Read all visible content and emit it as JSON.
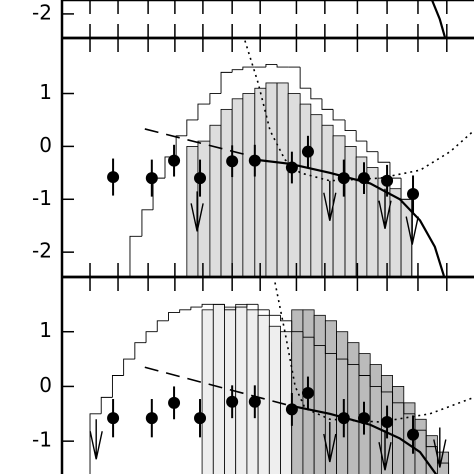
{
  "chart_data": [
    {
      "type": "scatter",
      "xlim": [
        0,
        100
      ],
      "ylim": [
        -2.45,
        -1.74
      ],
      "yticks": [
        -2
      ],
      "xticks": [
        6.8,
        13.6,
        20.9,
        27.4,
        34.2,
        41.3,
        48.1,
        56.9,
        63.8,
        71.7,
        78.9,
        86.4,
        93.4
      ],
      "curves": [
        {
          "x": [
            89.8,
            91.7,
            93.0
          ],
          "y": [
            -1.74,
            -2.1,
            -2.45
          ],
          "dash": "solid",
          "color": "#000000"
        }
      ]
    },
    {
      "type": "scatter",
      "xlim": [
        0,
        100
      ],
      "ylim": [
        -2.47,
        2.05
      ],
      "yticks": [
        -2,
        -1,
        0,
        1
      ],
      "xticks": [
        6.8,
        13.6,
        20.9,
        27.4,
        34.2,
        41.3,
        48.1,
        56.9,
        63.8,
        71.7,
        78.9,
        86.4,
        93.4
      ],
      "histograms": [
        {
          "bins": [
            30.3,
            33.0,
            35.9,
            38.6,
            41.3,
            43.9,
            46.8,
            49.5,
            52.2,
            54.9,
            57.8,
            60.4,
            63.1,
            65.8,
            68.7,
            71.4,
            74.0,
            76.7,
            79.6,
            82.3,
            84.9
          ],
          "values": [
            0.0,
            0.1,
            0.4,
            0.7,
            0.9,
            1.0,
            1.1,
            1.2,
            1.2,
            1.0,
            0.8,
            0.6,
            0.4,
            0.2,
            0.0,
            -0.2,
            -0.4,
            -0.6,
            -0.8,
            -1.0
          ],
          "fill": "#dddddd"
        },
        {
          "bins": [
            16.5,
            19.4,
            22.1,
            25.0,
            27.7,
            30.3,
            33.0,
            35.9,
            38.6,
            41.3,
            43.9,
            46.8,
            49.5,
            52.2,
            54.9,
            57.8,
            60.4,
            63.1,
            65.8,
            68.7,
            71.4,
            74.0,
            76.7,
            79.6,
            82.3,
            84.9
          ],
          "values": [
            -1.7,
            -1.2,
            -0.6,
            -0.2,
            0.2,
            0.5,
            0.8,
            1.0,
            1.4,
            1.45,
            1.5,
            1.5,
            1.55,
            1.5,
            1.5,
            1.1,
            0.9,
            0.7,
            0.5,
            0.3,
            0.1,
            -0.1,
            -0.3,
            -0.6,
            -1.0
          ],
          "fill": "none"
        }
      ],
      "curves": [
        {
          "x": [
            20.1,
            46.8
          ],
          "y": [
            0.33,
            -0.2
          ],
          "dash": "dashed",
          "color": "#000000"
        },
        {
          "x": [
            44.4,
            47.6,
            50.5,
            54.1,
            57.8,
            65.0,
            77.2,
            86.9,
            94.2,
            100
          ],
          "y": [
            2.0,
            1.2,
            0.3,
            -0.25,
            -0.5,
            -0.65,
            -0.6,
            -0.45,
            -0.1,
            0.3
          ],
          "dash": "dotted",
          "color": "#000000"
        },
        {
          "x": [
            46.8,
            55.3,
            65.0,
            74.8,
            82.0,
            86.9,
            90.5,
            92.7
          ],
          "y": [
            -0.25,
            -0.33,
            -0.5,
            -0.7,
            -1.0,
            -1.4,
            -1.9,
            -2.45
          ],
          "dash": "solid",
          "color": "#000000"
        }
      ],
      "upper_limits": {
        "x": [
          32.8,
          65.0,
          78.4,
          85.0
        ],
        "y": [
          -0.85,
          -0.65,
          -0.8,
          -1.1
        ]
      },
      "points": {
        "x": [
          12.4,
          21.8,
          27.2,
          33.5,
          41.3,
          46.8,
          55.8,
          59.7,
          68.4,
          73.3,
          78.9,
          85.2
        ],
        "y": [
          -0.58,
          -0.6,
          -0.27,
          -0.6,
          -0.28,
          -0.27,
          -0.4,
          -0.1,
          -0.6,
          -0.6,
          -0.65,
          -0.9
        ],
        "yerr": [
          0.35,
          0.35,
          0.3,
          0.35,
          0.3,
          0.3,
          0.3,
          0.3,
          0.35,
          0.3,
          0.3,
          0.35
        ],
        "color": "#000000"
      }
    },
    {
      "type": "scatter",
      "xlim": [
        0,
        100
      ],
      "ylim": [
        -1.71,
        2.0
      ],
      "yticks": [
        -1,
        0,
        1
      ],
      "xticks": [
        6.8,
        13.6,
        20.9,
        27.4,
        34.2,
        41.3,
        48.1,
        56.9,
        63.8,
        71.7,
        78.9,
        86.4,
        93.4
      ],
      "histograms": [
        {
          "bins": [
            34.0,
            36.72,
            39.44,
            42.16,
            44.88,
            47.6,
            50.32,
            53.04,
            55.76,
            58.48,
            61.2,
            63.92,
            66.64,
            69.36,
            72.08,
            74.8,
            77.52,
            80.24,
            82.96,
            85.68,
            88.4,
            91.12,
            93.84
          ],
          "values": [
            1.4,
            1.5,
            1.45,
            1.5,
            1.4,
            1.3,
            1.1,
            1.0,
            0.8,
            0.7,
            0.55,
            0.4,
            0.3,
            0.2,
            0.0,
            -0.2,
            -0.4,
            -0.6,
            -0.8,
            -1.0,
            -1.3,
            -1.6
          ],
          "fill": "#eeeeee"
        },
        {
          "bins": [
            55.76,
            58.48,
            61.2,
            63.92,
            66.64,
            69.36,
            72.08,
            74.8,
            77.52,
            80.24,
            82.96,
            85.68,
            88.4,
            91.12,
            93.84
          ],
          "values": [
            1.4,
            1.4,
            1.3,
            1.2,
            1.0,
            0.8,
            0.6,
            0.4,
            0.2,
            0.0,
            -0.3,
            -0.6,
            -0.9,
            -1.2
          ],
          "fill": "#bbbbbb"
        },
        {
          "bins": [
            6.8,
            9.52,
            12.24,
            14.96,
            17.68,
            20.4,
            23.12,
            25.84,
            28.56,
            31.28,
            34.0,
            36.72,
            39.44,
            42.16,
            44.88,
            47.6,
            50.32,
            53.04,
            55.76,
            58.48,
            61.2,
            63.92,
            66.64,
            69.36,
            72.08,
            74.8,
            77.52,
            80.24,
            82.96,
            85.68,
            88.4,
            91.12,
            93.84
          ],
          "values": [
            -0.5,
            -0.2,
            0.2,
            0.5,
            0.8,
            1.0,
            1.2,
            1.35,
            1.4,
            1.45,
            1.5,
            1.5,
            1.4,
            1.45,
            1.5,
            1.4,
            1.3,
            1.2,
            1.0,
            0.9,
            0.75,
            0.6,
            0.5,
            0.4,
            0.2,
            0.0,
            -0.1,
            -0.3,
            -0.5,
            -0.8,
            -1.1,
            -1.4
          ],
          "fill": "none"
        }
      ],
      "curves": [
        {
          "x": [
            20.1,
            55.3
          ],
          "y": [
            0.35,
            -0.35
          ],
          "dash": "dashed",
          "color": "#000000"
        },
        {
          "x": [
            51.7,
            54.1,
            56.6,
            59.0,
            65.0,
            77.2,
            89.3,
            100
          ],
          "y": [
            1.9,
            1.0,
            0.0,
            -0.4,
            -0.6,
            -0.65,
            -0.5,
            -0.2
          ],
          "dash": "dotted",
          "color": "#000000"
        },
        {
          "x": [
            55.3,
            65.0,
            74.8,
            82.0,
            86.9,
            91.7
          ],
          "y": [
            -0.35,
            -0.5,
            -0.7,
            -0.95,
            -1.2,
            -1.7
          ],
          "dash": "solid",
          "color": "#000000"
        }
      ],
      "upper_limits": {
        "x": [
          8.3,
          65.0,
          78.4,
          91.7
        ],
        "y": [
          -0.6,
          -0.65,
          -0.8,
          -0.75
        ]
      },
      "points": {
        "x": [
          12.4,
          21.8,
          27.2,
          33.5,
          41.3,
          46.8,
          55.8,
          59.7,
          68.4,
          73.3,
          78.9,
          85.2
        ],
        "y": [
          -0.58,
          -0.58,
          -0.3,
          -0.58,
          -0.28,
          -0.28,
          -0.42,
          -0.12,
          -0.58,
          -0.58,
          -0.65,
          -0.88
        ],
        "yerr": [
          0.35,
          0.35,
          0.3,
          0.35,
          0.3,
          0.3,
          0.3,
          0.3,
          0.35,
          0.3,
          0.3,
          0.35
        ],
        "color": "#000000"
      }
    }
  ]
}
